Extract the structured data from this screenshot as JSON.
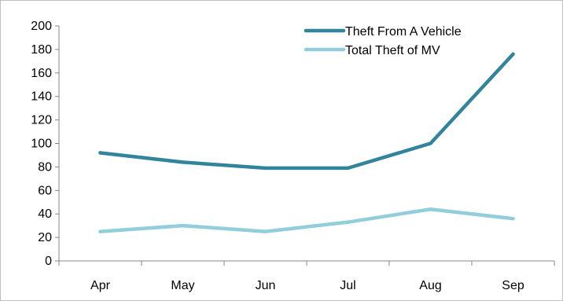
{
  "chart_data": {
    "type": "line",
    "categories": [
      "Apr",
      "May",
      "Jun",
      "Jul",
      "Aug",
      "Sep"
    ],
    "series": [
      {
        "name": "Theft From A Vehicle",
        "color": "#31849b",
        "values": [
          92,
          84,
          79,
          79,
          100,
          176
        ]
      },
      {
        "name": "Total Theft of MV",
        "color": "#92cddc",
        "values": [
          25,
          30,
          25,
          33,
          44,
          36
        ]
      }
    ],
    "ylim": [
      0,
      200
    ],
    "yticks": [
      0,
      20,
      40,
      60,
      80,
      100,
      120,
      140,
      160,
      180,
      200
    ],
    "grid": false,
    "legend": "top-right"
  }
}
